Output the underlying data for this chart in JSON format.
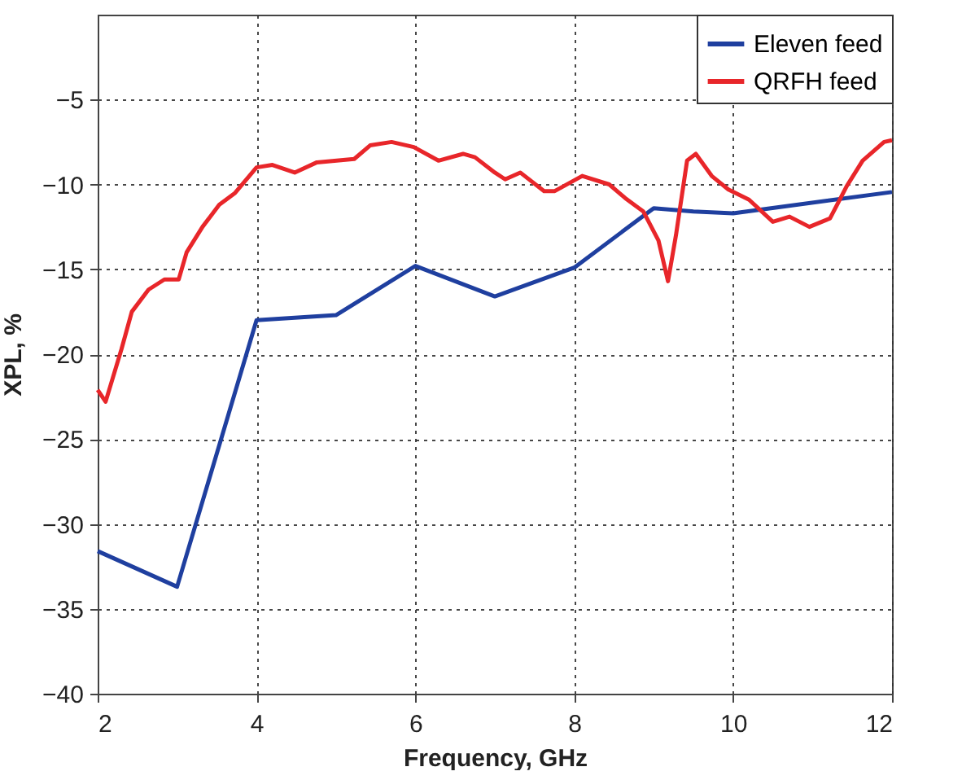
{
  "chart_data": {
    "type": "line",
    "xlabel": "Frequency, GHz",
    "ylabel": "XPL, %",
    "xlim": [
      2,
      12
    ],
    "ylim": [
      -40,
      0
    ],
    "xticks": [
      2,
      4,
      6,
      8,
      10,
      12
    ],
    "yticks": [
      -40,
      -35,
      -30,
      -25,
      -20,
      -15,
      -10,
      -5
    ],
    "grid": true,
    "legend": "top right",
    "line_style": "solid",
    "series": [
      {
        "name": "Eleven feed",
        "color": "#1f3f9f",
        "x": [
          2,
          3,
          4,
          5,
          6,
          7,
          8,
          9,
          9.5,
          10,
          12
        ],
        "values": [
          -31.6,
          -33.7,
          -18,
          -17.7,
          -14.8,
          -16.6,
          -14.9,
          -11.4,
          -11.6,
          -11.7,
          -10.45
        ]
      },
      {
        "name": "QRFH feed",
        "color": "#e8262a",
        "x": [
          2,
          2.1,
          2.3,
          2.43,
          2.64,
          2.84,
          3.02,
          3.12,
          3.32,
          3.53,
          3.73,
          4.0,
          4.2,
          4.48,
          4.76,
          5.23,
          5.43,
          5.7,
          5.98,
          6.29,
          6.6,
          6.75,
          7.0,
          7.13,
          7.32,
          7.62,
          7.75,
          8.1,
          8.44,
          8.64,
          8.87,
          9.06,
          9.18,
          9.28,
          9.42,
          9.53,
          9.73,
          9.94,
          10.2,
          10.5,
          10.71,
          10.96,
          11.22,
          11.43,
          11.63,
          11.9,
          12
        ],
        "values": [
          -22.1,
          -22.8,
          -19.7,
          -17.5,
          -16.2,
          -15.6,
          -15.6,
          -14,
          -12.5,
          -11.2,
          -10.5,
          -9,
          -8.85,
          -9.3,
          -8.7,
          -8.5,
          -7.7,
          -7.5,
          -7.8,
          -8.6,
          -8.2,
          -8.4,
          -9.3,
          -9.7,
          -9.3,
          -10.4,
          -10.4,
          -9.5,
          -10,
          -10.8,
          -11.6,
          -13.3,
          -15.7,
          -13,
          -8.6,
          -8.2,
          -9.5,
          -10.3,
          -10.9,
          -12.2,
          -11.9,
          -12.5,
          -12,
          -10.1,
          -8.6,
          -7.5,
          -7.4
        ]
      }
    ]
  }
}
